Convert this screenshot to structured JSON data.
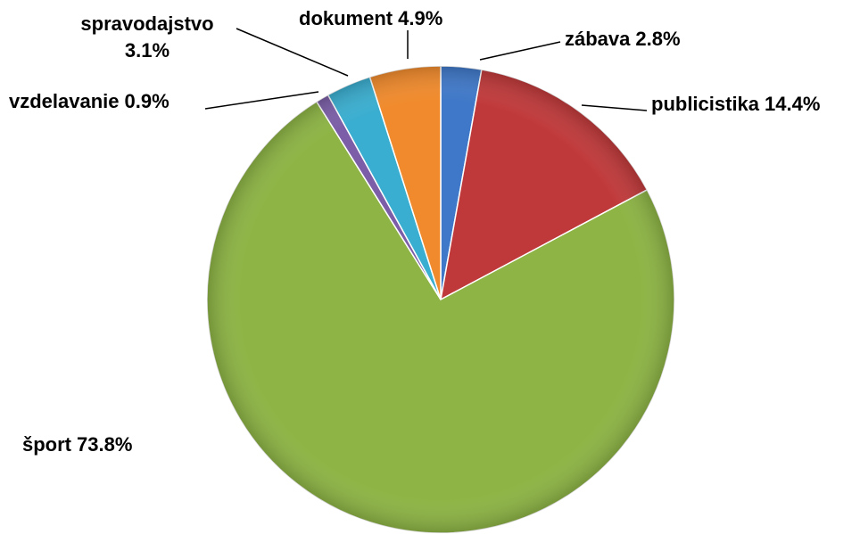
{
  "chart_data": {
    "type": "pie",
    "categories": [
      "zábava",
      "publicistika",
      "šport",
      "vzdelavanie",
      "spravodajstvo",
      "dokument"
    ],
    "values": [
      2.8,
      14.4,
      73.8,
      0.9,
      3.1,
      4.9
    ],
    "value_labels": [
      "2.8%",
      "14.4%",
      "73.8%",
      "0.9%",
      "3.1%",
      "4.9%"
    ],
    "colors": [
      "#3f78c8",
      "#c0393a",
      "#8db444",
      "#7b5ea7",
      "#3aaed0",
      "#f08a2c"
    ]
  }
}
